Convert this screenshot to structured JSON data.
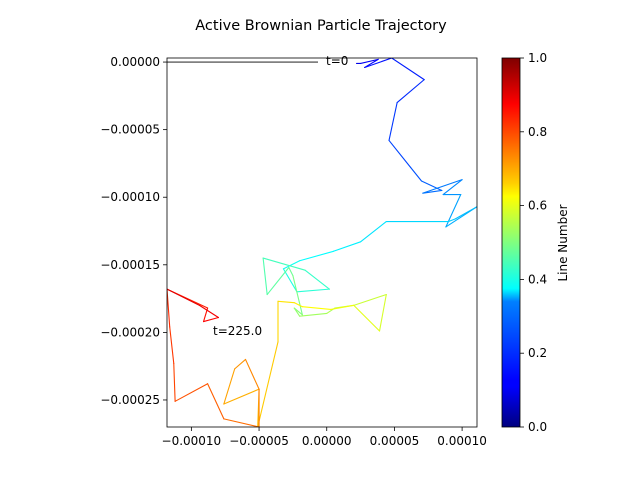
{
  "chart_data": {
    "type": "line",
    "title": "Active Brownian Particle Trajectory",
    "xlabel": "",
    "ylabel": "",
    "xlim": [
      -0.000118,
      0.000111
    ],
    "ylim": [
      -0.00027,
      3e-06
    ],
    "x_ticks": [
      -0.0001,
      -5e-05,
      0.0,
      5e-05,
      0.0001
    ],
    "x_tick_labels": [
      "−0.00010",
      "−0.00005",
      "0.00000",
      "0.00005",
      "0.00010"
    ],
    "y_ticks": [
      0.0,
      -5e-05,
      -0.0001,
      -0.00015,
      -0.0002,
      -0.00025
    ],
    "y_tick_labels": [
      "0.00000",
      "−0.00005",
      "−0.00010",
      "−0.00015",
      "−0.00020",
      "−0.00025"
    ],
    "colormap": "jet",
    "colorbar": {
      "label": "Line Number",
      "range": [
        0.0,
        1.0
      ],
      "ticks": [
        0.0,
        0.2,
        0.4,
        0.6,
        0.8,
        1.0
      ],
      "tick_labels": [
        "0.0",
        "0.2",
        "0.4",
        "0.6",
        "0.8",
        "1.0"
      ]
    },
    "annotations": [
      {
        "text": "t=0",
        "x": 0.0,
        "y": 0.0
      },
      {
        "text": "t=225.0",
        "x": -8e-05,
        "y": -0.0002
      }
    ],
    "trajectory": {
      "x": [
        2.2e-05,
        2.5e-05,
        3.8e-05,
        2.8e-05,
        4.8e-05,
        7.2e-05,
        5.2e-05,
        4.6e-05,
        6.2e-05,
        7e-05,
        8.5e-05,
        7.1e-05,
        0.0001,
        8.6e-05,
        9.9e-05,
        8.8e-05,
        0.000111,
        9.5e-05,
        9e-05,
        4.4e-05,
        2.5e-05,
        5e-06,
        -2e-05,
        -3.2e-05,
        -2.2e-05,
        2e-06,
        -1.6e-05,
        -4.7e-05,
        -4.4e-05,
        -2.8e-05,
        -2.5e-05,
        -1.8e-05,
        -2.4e-05,
        -2e-05,
        0.0,
        6e-06,
        2e-05,
        4.4e-05,
        3.9e-05,
        2e-05,
        3e-06,
        -1.8e-05,
        -2.4e-05,
        -3.6e-05,
        -3.6e-05,
        -5.1e-05,
        -5e-05,
        -7.6e-05,
        -6.8e-05,
        -6e-05,
        -5e-05,
        -5e-05,
        -7.6e-05,
        -8.8e-05,
        -0.000112,
        -0.000113,
        -0.000116,
        -0.000118,
        -8.8e-05,
        -9.1e-05,
        -8e-05,
        -9.4e-05,
        -0.000118
      ],
      "y": [
        -1e-06,
        -1e-06,
        2e-06,
        -4e-06,
        3e-06,
        -1.3e-05,
        -3e-05,
        -5.8e-05,
        -7.8e-05,
        -8.8e-05,
        -9.5e-05,
        -9.7e-05,
        -8.7e-05,
        -9.8e-05,
        -9.8e-05,
        -0.000122,
        -0.000107,
        -0.000116,
        -0.000118,
        -0.000118,
        -0.000133,
        -0.00014,
        -0.000147,
        -0.000153,
        -0.00017,
        -0.000168,
        -0.000154,
        -0.000145,
        -0.000172,
        -0.000152,
        -0.000158,
        -0.000187,
        -0.000182,
        -0.000188,
        -0.000186,
        -0.000182,
        -0.00018,
        -0.000172,
        -0.000199,
        -0.00018,
        -0.000183,
        -0.000181,
        -0.000178,
        -0.000177,
        -0.000207,
        -0.00027,
        -0.000242,
        -0.000253,
        -0.000227,
        -0.00022,
        -0.000242,
        -0.00027,
        -0.000264,
        -0.000238,
        -0.000251,
        -0.000223,
        -0.000196,
        -0.000168,
        -0.000182,
        -0.000192,
        -0.000189,
        -0.00018,
        -0.000168
      ]
    }
  }
}
